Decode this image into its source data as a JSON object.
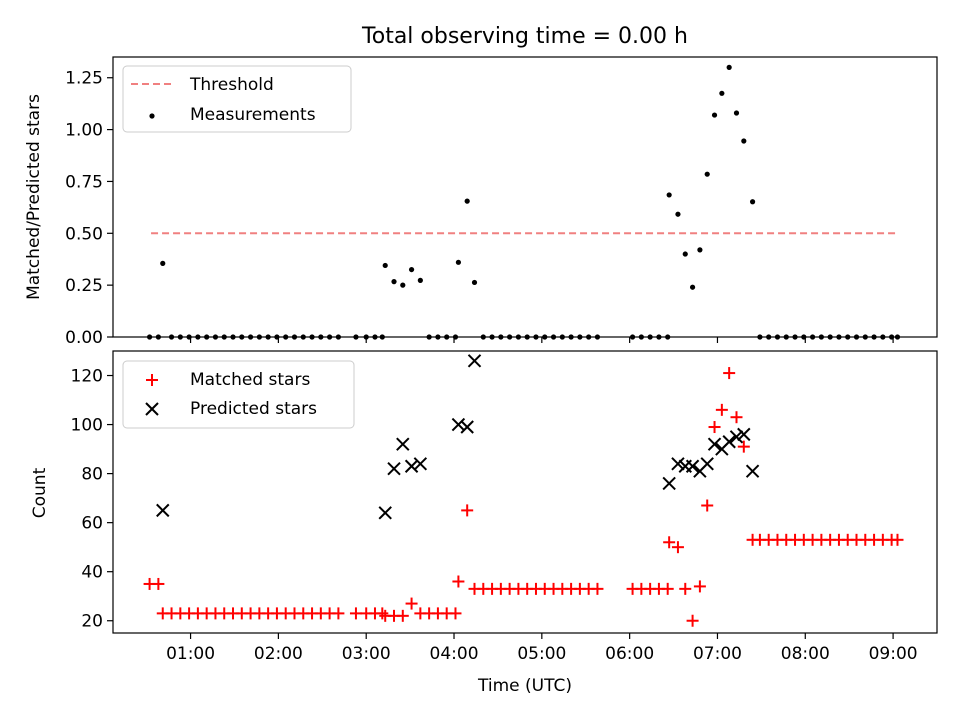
{
  "chart_data": [
    {
      "type": "scatter",
      "title": "Total observing time = 0.00 h",
      "xlabel": "",
      "ylabel": "Matched/Predicted stars",
      "ylim": [
        0,
        1.35
      ],
      "xlim": [
        "00:07",
        "09:30"
      ],
      "yticks": [
        "0.00",
        "0.25",
        "0.50",
        "0.75",
        "1.00",
        "1.25"
      ],
      "legend": {
        "placement": "top-left",
        "entries": [
          "Threshold",
          "Measurements"
        ]
      },
      "threshold": {
        "name": "Threshold",
        "value": 0.5,
        "x_range": [
          "00:33",
          "09:03"
        ],
        "color": "#f08080"
      },
      "series": [
        {
          "name": "Measurements",
          "marker": "dot",
          "color": "#000000",
          "points": [
            [
              "00:32",
              0
            ],
            [
              "00:38",
              0
            ],
            [
              "00:41",
              0.355
            ],
            [
              "00:47",
              0
            ],
            [
              "00:53",
              0
            ],
            [
              "00:59",
              0
            ],
            [
              "01:05",
              0
            ],
            [
              "01:11",
              0
            ],
            [
              "01:17",
              0
            ],
            [
              "01:23",
              0
            ],
            [
              "01:29",
              0
            ],
            [
              "01:35",
              0
            ],
            [
              "01:41",
              0
            ],
            [
              "01:47",
              0
            ],
            [
              "01:53",
              0
            ],
            [
              "01:59",
              0
            ],
            [
              "02:05",
              0
            ],
            [
              "02:11",
              0
            ],
            [
              "02:17",
              0
            ],
            [
              "02:23",
              0
            ],
            [
              "02:29",
              0
            ],
            [
              "02:35",
              0
            ],
            [
              "02:41",
              0
            ],
            [
              "02:53",
              0
            ],
            [
              "03:00",
              0
            ],
            [
              "03:06",
              0
            ],
            [
              "03:11",
              0
            ],
            [
              "03:13",
              0.345
            ],
            [
              "03:19",
              0.267
            ],
            [
              "03:25",
              0.25
            ],
            [
              "03:31",
              0.325
            ],
            [
              "03:37",
              0.273
            ],
            [
              "03:43",
              0
            ],
            [
              "03:49",
              0
            ],
            [
              "03:55",
              0
            ],
            [
              "04:01",
              0
            ],
            [
              "04:03",
              0.36
            ],
            [
              "04:09",
              0.655
            ],
            [
              "04:14",
              0.263
            ],
            [
              "04:20",
              0
            ],
            [
              "04:26",
              0
            ],
            [
              "04:32",
              0
            ],
            [
              "04:38",
              0
            ],
            [
              "04:44",
              0
            ],
            [
              "04:50",
              0
            ],
            [
              "04:56",
              0
            ],
            [
              "05:02",
              0
            ],
            [
              "05:08",
              0
            ],
            [
              "05:14",
              0
            ],
            [
              "05:20",
              0
            ],
            [
              "05:26",
              0
            ],
            [
              "05:32",
              0
            ],
            [
              "05:38",
              0
            ],
            [
              "06:02",
              0
            ],
            [
              "06:08",
              0
            ],
            [
              "06:14",
              0
            ],
            [
              "06:20",
              0
            ],
            [
              "06:26",
              0
            ],
            [
              "06:27",
              0.685
            ],
            [
              "06:33",
              0.592
            ],
            [
              "06:38",
              0.4
            ],
            [
              "06:43",
              0.24
            ],
            [
              "06:48",
              0.42
            ],
            [
              "06:53",
              0.785
            ],
            [
              "06:58",
              1.07
            ],
            [
              "07:03",
              1.175
            ],
            [
              "07:08",
              1.3
            ],
            [
              "07:13",
              1.08
            ],
            [
              "07:18",
              0.945
            ],
            [
              "07:24",
              0.652
            ],
            [
              "07:29",
              0
            ],
            [
              "07:35",
              0
            ],
            [
              "07:41",
              0
            ],
            [
              "07:47",
              0
            ],
            [
              "07:53",
              0
            ],
            [
              "07:59",
              0
            ],
            [
              "08:05",
              0
            ],
            [
              "08:11",
              0
            ],
            [
              "08:17",
              0
            ],
            [
              "08:23",
              0
            ],
            [
              "08:29",
              0
            ],
            [
              "08:35",
              0
            ],
            [
              "08:41",
              0
            ],
            [
              "08:47",
              0
            ],
            [
              "08:53",
              0
            ],
            [
              "08:59",
              0
            ],
            [
              "09:03",
              0
            ]
          ]
        }
      ]
    },
    {
      "type": "scatter",
      "title": "",
      "xlabel": "Time (UTC)",
      "ylabel": "Count",
      "ylim": [
        15,
        130
      ],
      "xlim": [
        "00:07",
        "09:30"
      ],
      "yticks": [
        "20",
        "40",
        "60",
        "80",
        "100",
        "120"
      ],
      "xticks": [
        "01:00",
        "02:00",
        "03:00",
        "04:00",
        "05:00",
        "06:00",
        "07:00",
        "08:00",
        "09:00"
      ],
      "legend": {
        "placement": "top-left",
        "entries": [
          "Matched stars",
          "Predicted stars"
        ]
      },
      "series": [
        {
          "name": "Matched stars",
          "marker": "plus",
          "color": "#ff0000",
          "points": [
            [
              "00:32",
              35
            ],
            [
              "00:38",
              35
            ],
            [
              "00:41",
              23
            ],
            [
              "00:47",
              23
            ],
            [
              "00:53",
              23
            ],
            [
              "00:59",
              23
            ],
            [
              "01:05",
              23
            ],
            [
              "01:11",
              23
            ],
            [
              "01:17",
              23
            ],
            [
              "01:23",
              23
            ],
            [
              "01:29",
              23
            ],
            [
              "01:35",
              23
            ],
            [
              "01:41",
              23
            ],
            [
              "01:47",
              23
            ],
            [
              "01:53",
              23
            ],
            [
              "01:59",
              23
            ],
            [
              "02:05",
              23
            ],
            [
              "02:11",
              23
            ],
            [
              "02:17",
              23
            ],
            [
              "02:23",
              23
            ],
            [
              "02:29",
              23
            ],
            [
              "02:35",
              23
            ],
            [
              "02:41",
              23
            ],
            [
              "02:53",
              23
            ],
            [
              "03:00",
              23
            ],
            [
              "03:06",
              23
            ],
            [
              "03:11",
              23
            ],
            [
              "03:13",
              22
            ],
            [
              "03:19",
              22
            ],
            [
              "03:25",
              22
            ],
            [
              "03:31",
              27
            ],
            [
              "03:37",
              23
            ],
            [
              "03:43",
              23
            ],
            [
              "03:49",
              23
            ],
            [
              "03:55",
              23
            ],
            [
              "04:01",
              23
            ],
            [
              "04:03",
              36
            ],
            [
              "04:09",
              65
            ],
            [
              "04:14",
              33
            ],
            [
              "04:20",
              33
            ],
            [
              "04:26",
              33
            ],
            [
              "04:32",
              33
            ],
            [
              "04:38",
              33
            ],
            [
              "04:44",
              33
            ],
            [
              "04:50",
              33
            ],
            [
              "04:56",
              33
            ],
            [
              "05:02",
              33
            ],
            [
              "05:08",
              33
            ],
            [
              "05:14",
              33
            ],
            [
              "05:20",
              33
            ],
            [
              "05:26",
              33
            ],
            [
              "05:32",
              33
            ],
            [
              "05:38",
              33
            ],
            [
              "06:02",
              33
            ],
            [
              "06:08",
              33
            ],
            [
              "06:14",
              33
            ],
            [
              "06:20",
              33
            ],
            [
              "06:26",
              33
            ],
            [
              "06:27",
              52
            ],
            [
              "06:33",
              50
            ],
            [
              "06:38",
              33
            ],
            [
              "06:43",
              20
            ],
            [
              "06:48",
              34
            ],
            [
              "06:53",
              67
            ],
            [
              "06:58",
              99
            ],
            [
              "07:03",
              106
            ],
            [
              "07:08",
              121
            ],
            [
              "07:13",
              103
            ],
            [
              "07:18",
              91
            ],
            [
              "07:24",
              53
            ],
            [
              "07:29",
              53
            ],
            [
              "07:35",
              53
            ],
            [
              "07:41",
              53
            ],
            [
              "07:47",
              53
            ],
            [
              "07:53",
              53
            ],
            [
              "07:59",
              53
            ],
            [
              "08:05",
              53
            ],
            [
              "08:11",
              53
            ],
            [
              "08:17",
              53
            ],
            [
              "08:23",
              53
            ],
            [
              "08:29",
              53
            ],
            [
              "08:35",
              53
            ],
            [
              "08:41",
              53
            ],
            [
              "08:47",
              53
            ],
            [
              "08:53",
              53
            ],
            [
              "08:59",
              53
            ],
            [
              "09:03",
              53
            ]
          ]
        },
        {
          "name": "Predicted stars",
          "marker": "x",
          "color": "#000000",
          "points": [
            [
              "00:41",
              65
            ],
            [
              "03:13",
              64
            ],
            [
              "03:19",
              82
            ],
            [
              "03:25",
              92
            ],
            [
              "03:31",
              83
            ],
            [
              "03:37",
              84
            ],
            [
              "04:03",
              100
            ],
            [
              "04:09",
              99
            ],
            [
              "04:14",
              126
            ],
            [
              "06:27",
              76
            ],
            [
              "06:33",
              84
            ],
            [
              "06:38",
              83
            ],
            [
              "06:43",
              83
            ],
            [
              "06:48",
              81
            ],
            [
              "06:53",
              84
            ],
            [
              "06:58",
              92
            ],
            [
              "07:03",
              90
            ],
            [
              "07:08",
              93
            ],
            [
              "07:13",
              95
            ],
            [
              "07:18",
              96
            ],
            [
              "07:24",
              81
            ]
          ]
        }
      ]
    }
  ]
}
